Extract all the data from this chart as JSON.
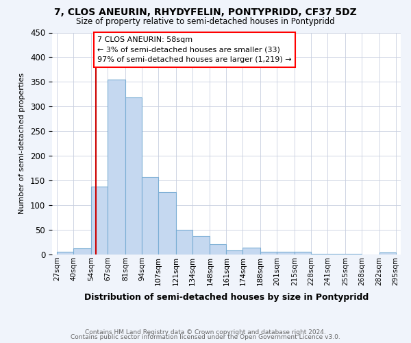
{
  "title": "7, CLOS ANEURIN, RHYDYFELIN, PONTYPRIDD, CF37 5DZ",
  "subtitle": "Size of property relative to semi-detached houses in Pontypridd",
  "xlabel": "Distribution of semi-detached houses by size in Pontypridd",
  "ylabel": "Number of semi-detached properties",
  "footer_line1": "Contains HM Land Registry data © Crown copyright and database right 2024.",
  "footer_line2": "Contains public sector information licensed under the Open Government Licence v3.0.",
  "annotation_title": "7 CLOS ANEURIN: 58sqm",
  "annotation_line1": "← 3% of semi-detached houses are smaller (33)",
  "annotation_line2": "97% of semi-detached houses are larger (1,219) →",
  "property_size": 58,
  "bar_labels": [
    "27sqm",
    "40sqm",
    "54sqm",
    "67sqm",
    "81sqm",
    "94sqm",
    "107sqm",
    "121sqm",
    "134sqm",
    "148sqm",
    "161sqm",
    "174sqm",
    "188sqm",
    "201sqm",
    "215sqm",
    "228sqm",
    "241sqm",
    "255sqm",
    "268sqm",
    "282sqm",
    "295sqm"
  ],
  "bar_values": [
    6,
    12,
    138,
    355,
    318,
    157,
    126,
    50,
    38,
    21,
    9,
    14,
    6,
    5,
    6,
    1,
    1,
    1,
    0,
    4
  ],
  "bar_edges": [
    27,
    40,
    54,
    67,
    81,
    94,
    107,
    121,
    134,
    148,
    161,
    174,
    188,
    201,
    215,
    228,
    241,
    255,
    268,
    282,
    295
  ],
  "bar_color": "#c5d8f0",
  "bar_edge_color": "#7aadd4",
  "highlight_color": "#cc0000",
  "ylim_max": 450,
  "yticks": [
    0,
    50,
    100,
    150,
    200,
    250,
    300,
    350,
    400,
    450
  ],
  "fig_bg_color": "#f0f4fb",
  "plot_bg_color": "#ffffff",
  "grid_color": "#c8cedf"
}
